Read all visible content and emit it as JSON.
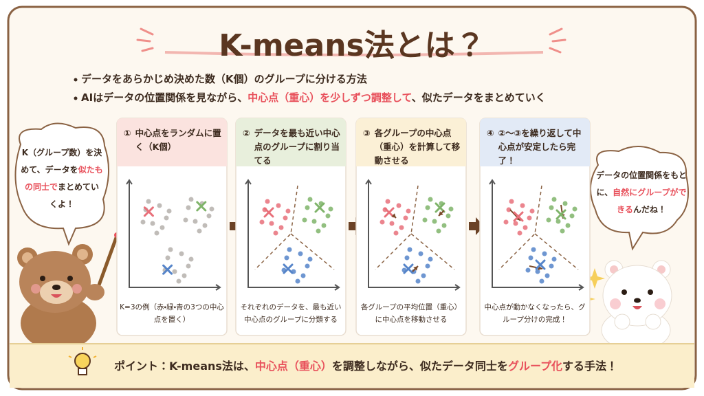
{
  "title": "K-means法とは？",
  "bullets": [
    {
      "segments": [
        {
          "text": "データをあらかじめ決めた数（K個）のグループに分ける方法"
        }
      ]
    },
    {
      "segments": [
        {
          "text": "AIはデータの位置関係を見ながら、"
        },
        {
          "text": "中心点（重心）を少しずつ調整して",
          "emphasis": true
        },
        {
          "text": "、似たデータをまとめていく"
        }
      ]
    }
  ],
  "left_bubble": {
    "segments": [
      {
        "text": "K（グループ数）を決めて、データを"
      },
      {
        "text": "似たもの同士で",
        "emphasis": true
      },
      {
        "text": "まとめていくよ！"
      }
    ]
  },
  "right_bubble": {
    "segments": [
      {
        "text": "データの位置関係をもとに、"
      },
      {
        "text": "自然に",
        "emphasis": true
      },
      {
        "text": "グループができる",
        "emphasis": true
      },
      {
        "text": "んだね！"
      }
    ]
  },
  "steps": [
    {
      "number": "①",
      "title": "中心点をランダムに置く（K個）",
      "caption": "K=3の例（赤・緑・青の3つの中心点を置く）",
      "color": "#fbe3df"
    },
    {
      "number": "②",
      "title": "データを最も近い中心点のグループに割り当てる",
      "caption": "それぞれのデータを、最も近い中心点のグループに分類する",
      "color": "#e8efdc"
    },
    {
      "number": "③",
      "title": "各グループの中心点（重心）を計算して移動させる",
      "caption": "各グループの平均位置（重心）に中心点を移動させる",
      "color": "#fbf0d6"
    },
    {
      "number": "④",
      "title": "②〜③を繰り返して中心点が安定したら完了！",
      "caption": "中心点が動かなくなったら、グループ分けの完成！",
      "color": "#e2eaf6"
    }
  ],
  "point": {
    "segments": [
      {
        "text": "ポイント："
      },
      {
        "text": "K-means法は、"
      },
      {
        "text": "中心点（重心）",
        "emphasis": true
      },
      {
        "text": "を調整しながら、似たデータ同士を"
      },
      {
        "text": "グループ化",
        "emphasis": true
      },
      {
        "text": "する手法！"
      }
    ]
  }
}
